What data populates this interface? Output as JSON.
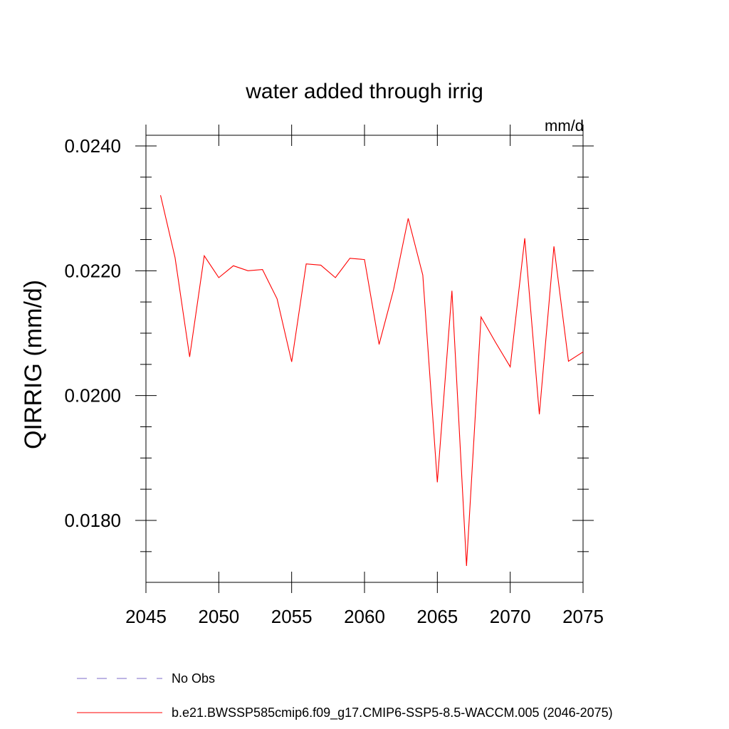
{
  "chart_data": {
    "type": "line",
    "title": "water added through irrig",
    "units_label": "mm/d",
    "ylabel": "QIRRIG  (mm/d)",
    "xlabel": "",
    "xlim": [
      2045,
      2075
    ],
    "ylim": [
      0.017,
      0.0241
    ],
    "x_ticks": [
      2045,
      2050,
      2055,
      2060,
      2065,
      2070,
      2075
    ],
    "x_tick_labels": [
      "2045",
      "2050",
      "2055",
      "2060",
      "2065",
      "2070",
      "2075"
    ],
    "y_ticks": [
      0.018,
      0.02,
      0.022,
      0.024
    ],
    "y_tick_labels": [
      "0.0180",
      "0.0200",
      "0.0220",
      "0.0240"
    ],
    "y_minor_step": 0.0005,
    "x_minor_step": 1,
    "grid": false,
    "series": [
      {
        "name": "No Obs",
        "color": "#7b68c8",
        "dash": "dashed",
        "x": [],
        "values": []
      },
      {
        "name": "b.e21.BWSSP585cmip6.f09_g17.CMIP6-SSP5-8.5-WACCM.005 (2046-2075)",
        "color": "#ff0000",
        "dash": "solid",
        "x": [
          2046,
          2047,
          2048,
          2049,
          2050,
          2051,
          2052,
          2053,
          2054,
          2055,
          2056,
          2057,
          2058,
          2059,
          2060,
          2061,
          2062,
          2063,
          2064,
          2065,
          2066,
          2067,
          2068,
          2069,
          2070,
          2071,
          2072,
          2073,
          2074,
          2075
        ],
        "values": [
          0.02321,
          0.02221,
          0.02062,
          0.02224,
          0.02189,
          0.02208,
          0.022,
          0.02202,
          0.02155,
          0.02054,
          0.02211,
          0.02209,
          0.02189,
          0.0222,
          0.02218,
          0.02082,
          0.0217,
          0.02284,
          0.02193,
          0.01861,
          0.02168,
          0.01727,
          0.02126,
          0.02085,
          0.02046,
          0.02252,
          0.0197,
          0.02239,
          0.02055,
          0.0207
        ]
      }
    ],
    "legend_position": "bottom"
  }
}
